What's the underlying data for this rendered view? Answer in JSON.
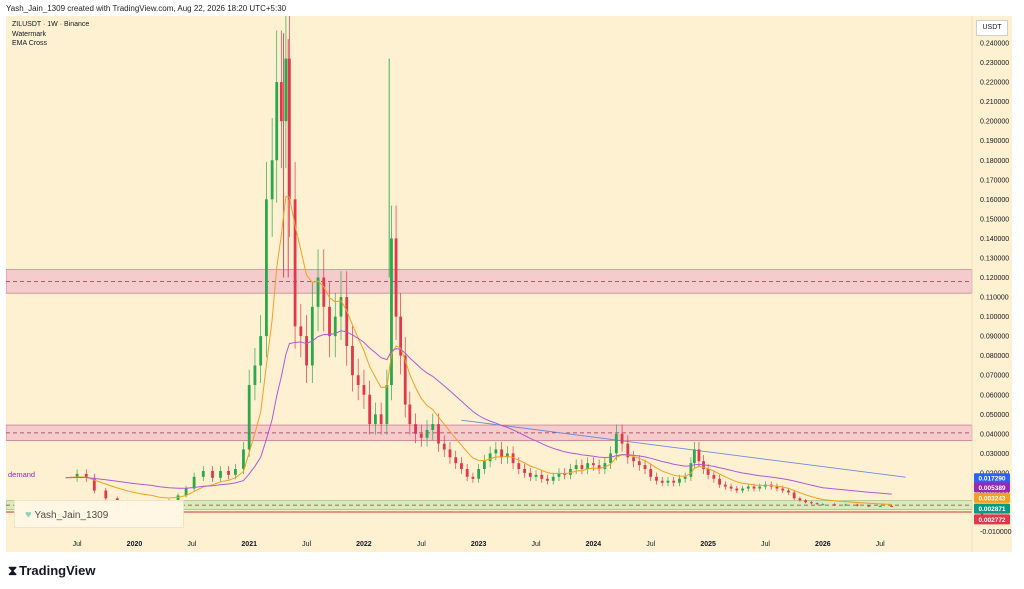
{
  "header": {
    "credit": "Yash_Jain_1309 created with TradingView.com, Aug 22, 2026 18:20 UTC+5:30",
    "legend": [
      "ZILUSDT · 1W · Binance",
      "Watermark",
      "EMA Cross"
    ],
    "currency": "USDT"
  },
  "footer": {
    "brand": "TradingView"
  },
  "annotations": {
    "demand_label": "demand",
    "watermark_text": "Yash_Jain_1309"
  },
  "colors": {
    "background": "#fdf1d2",
    "candle_up": "#2aa84a",
    "candle_down": "#e0384a",
    "ema_fast": "#f2a021",
    "ema_slow": "#b05ad6",
    "long_line": "#6c8ad8",
    "zone_fill": "#f0b8c8",
    "demand_fill": "#c8e8b0",
    "support_line": "#d32f2f"
  },
  "chart_data": {
    "type": "candlestick",
    "symbol": "ZILUSDT",
    "interval": "1W",
    "exchange": "Binance",
    "ylim": [
      -0.01,
      0.245
    ],
    "y_ticks": [
      "0.240000",
      "0.230000",
      "0.220000",
      "0.210000",
      "0.200000",
      "0.190000",
      "0.180000",
      "0.170000",
      "0.160000",
      "0.150000",
      "0.140000",
      "0.130000",
      "0.120000",
      "0.110000",
      "0.100000",
      "0.090000",
      "0.080000",
      "0.070000",
      "0.060000",
      "0.050000",
      "0.040000",
      "0.030000",
      "0.020000",
      "0.010000",
      "0",
      "-0.010000"
    ],
    "y_tick_values": [
      0.24,
      0.23,
      0.22,
      0.21,
      0.2,
      0.19,
      0.18,
      0.17,
      0.16,
      0.15,
      0.14,
      0.13,
      0.12,
      0.11,
      0.1,
      0.09,
      0.08,
      0.07,
      0.06,
      0.05,
      0.04,
      0.03,
      0.02,
      0.01,
      0,
      -0.01
    ],
    "x_ticks": [
      "Jul",
      "2020",
      "Jul",
      "2021",
      "Jul",
      "2022",
      "Jul",
      "2023",
      "Jul",
      "2024",
      "Jul",
      "2025",
      "Jul",
      "2026",
      "Jul"
    ],
    "x_tick_values": [
      2019.5,
      2020.0,
      2020.5,
      2021.0,
      2021.5,
      2022.0,
      2022.5,
      2023.0,
      2023.5,
      2024.0,
      2024.5,
      2025.0,
      2025.5,
      2026.0,
      2026.5
    ],
    "xlim": [
      2018.95,
      2027.3
    ],
    "price_zones": [
      {
        "name": "upper-zone",
        "from": 0.112,
        "to": 0.124,
        "dashed_level": 0.118
      },
      {
        "name": "lower-zone",
        "from": 0.0365,
        "to": 0.0445,
        "dashed_level": 0.0405
      },
      {
        "name": "demand-zone",
        "from": 0.0012,
        "to": 0.0058,
        "dashed_level": 0.0035
      }
    ],
    "support_level": 0.0,
    "price_labels": [
      {
        "value": "0.017290",
        "price": 0.0173,
        "color": "#2962ff"
      },
      {
        "value": "0.005389",
        "price": 0.0126,
        "color": "#9c27b0"
      },
      {
        "value": "0.003243",
        "price": 0.0072,
        "color": "#f2a021"
      },
      {
        "value": "0.002871",
        "price": 0.0017,
        "color": "#089981"
      },
      {
        "value": "0.002772",
        "price": -0.0038,
        "color": "#e0384a"
      }
    ],
    "close_series": [
      [
        2019.4,
        0.0175
      ],
      [
        2019.5,
        0.0195
      ],
      [
        2019.58,
        0.0175
      ],
      [
        2019.65,
        0.011
      ],
      [
        2019.75,
        0.007
      ],
      [
        2019.85,
        0.0055
      ],
      [
        2019.95,
        0.0045
      ],
      [
        2020.05,
        0.0048
      ],
      [
        2020.15,
        0.0055
      ],
      [
        2020.22,
        0.004
      ],
      [
        2020.3,
        0.006
      ],
      [
        2020.38,
        0.0085
      ],
      [
        2020.45,
        0.012
      ],
      [
        2020.52,
        0.018
      ],
      [
        2020.6,
        0.021
      ],
      [
        2020.68,
        0.0175
      ],
      [
        2020.75,
        0.021
      ],
      [
        2020.82,
        0.019
      ],
      [
        2020.88,
        0.022
      ],
      [
        2020.95,
        0.032
      ],
      [
        2021.0,
        0.065
      ],
      [
        2021.05,
        0.075
      ],
      [
        2021.1,
        0.09
      ],
      [
        2021.15,
        0.16
      ],
      [
        2021.2,
        0.18
      ],
      [
        2021.24,
        0.22
      ],
      [
        2021.28,
        0.2
      ],
      [
        2021.32,
        0.232
      ],
      [
        2021.35,
        0.16
      ],
      [
        2021.4,
        0.095
      ],
      [
        2021.45,
        0.09
      ],
      [
        2021.5,
        0.075
      ],
      [
        2021.55,
        0.105
      ],
      [
        2021.6,
        0.12
      ],
      [
        2021.65,
        0.105
      ],
      [
        2021.7,
        0.09
      ],
      [
        2021.75,
        0.1
      ],
      [
        2021.8,
        0.11
      ],
      [
        2021.85,
        0.085
      ],
      [
        2021.9,
        0.07
      ],
      [
        2021.95,
        0.065
      ],
      [
        2022.0,
        0.06
      ],
      [
        2022.05,
        0.045
      ],
      [
        2022.1,
        0.05
      ],
      [
        2022.15,
        0.045
      ],
      [
        2022.2,
        0.065
      ],
      [
        2022.24,
        0.14
      ],
      [
        2022.28,
        0.1
      ],
      [
        2022.32,
        0.08
      ],
      [
        2022.36,
        0.055
      ],
      [
        2022.4,
        0.045
      ],
      [
        2022.45,
        0.04
      ],
      [
        2022.5,
        0.038
      ],
      [
        2022.55,
        0.042
      ],
      [
        2022.6,
        0.045
      ],
      [
        2022.65,
        0.035
      ],
      [
        2022.7,
        0.032
      ],
      [
        2022.75,
        0.028
      ],
      [
        2022.8,
        0.025
      ],
      [
        2022.85,
        0.022
      ],
      [
        2022.9,
        0.018
      ],
      [
        2022.95,
        0.017
      ],
      [
        2023.0,
        0.022
      ],
      [
        2023.05,
        0.026
      ],
      [
        2023.1,
        0.03
      ],
      [
        2023.15,
        0.032
      ],
      [
        2023.2,
        0.028
      ],
      [
        2023.25,
        0.03
      ],
      [
        2023.3,
        0.025
      ],
      [
        2023.35,
        0.022
      ],
      [
        2023.4,
        0.02
      ],
      [
        2023.45,
        0.018
      ],
      [
        2023.5,
        0.019
      ],
      [
        2023.55,
        0.017
      ],
      [
        2023.6,
        0.016
      ],
      [
        2023.65,
        0.018
      ],
      [
        2023.7,
        0.02
      ],
      [
        2023.75,
        0.019
      ],
      [
        2023.8,
        0.022
      ],
      [
        2023.85,
        0.024
      ],
      [
        2023.9,
        0.022
      ],
      [
        2023.95,
        0.025
      ],
      [
        2024.0,
        0.024
      ],
      [
        2024.05,
        0.022
      ],
      [
        2024.1,
        0.025
      ],
      [
        2024.15,
        0.03
      ],
      [
        2024.2,
        0.04
      ],
      [
        2024.25,
        0.035
      ],
      [
        2024.3,
        0.028
      ],
      [
        2024.35,
        0.026
      ],
      [
        2024.4,
        0.024
      ],
      [
        2024.45,
        0.022
      ],
      [
        2024.5,
        0.018
      ],
      [
        2024.55,
        0.016
      ],
      [
        2024.6,
        0.015
      ],
      [
        2024.65,
        0.016
      ],
      [
        2024.7,
        0.015
      ],
      [
        2024.75,
        0.017
      ],
      [
        2024.8,
        0.018
      ],
      [
        2024.85,
        0.025
      ],
      [
        2024.88,
        0.032
      ],
      [
        2024.92,
        0.026
      ],
      [
        2024.96,
        0.022
      ],
      [
        2025.0,
        0.019
      ],
      [
        2025.05,
        0.017
      ],
      [
        2025.1,
        0.014
      ],
      [
        2025.15,
        0.013
      ],
      [
        2025.2,
        0.012
      ],
      [
        2025.25,
        0.011
      ],
      [
        2025.3,
        0.012
      ],
      [
        2025.35,
        0.013
      ],
      [
        2025.4,
        0.012
      ],
      [
        2025.45,
        0.013
      ],
      [
        2025.5,
        0.014
      ],
      [
        2025.55,
        0.013
      ],
      [
        2025.6,
        0.012
      ],
      [
        2025.65,
        0.011
      ],
      [
        2025.7,
        0.01
      ],
      [
        2025.75,
        0.007
      ],
      [
        2025.8,
        0.006
      ],
      [
        2025.85,
        0.005
      ],
      [
        2025.9,
        0.0045
      ],
      [
        2025.95,
        0.004
      ],
      [
        2026.0,
        0.004
      ],
      [
        2026.1,
        0.0035
      ],
      [
        2026.2,
        0.0038
      ],
      [
        2026.3,
        0.0032
      ],
      [
        2026.4,
        0.003
      ],
      [
        2026.5,
        0.0031
      ],
      [
        2026.6,
        0.0029
      ]
    ],
    "spikes": [
      {
        "x": 2021.3,
        "high": 0.245,
        "color": "#e0384a"
      },
      {
        "x": 2021.34,
        "high": 0.242,
        "color": "#e0384a"
      },
      {
        "x": 2022.22,
        "high": 0.232,
        "color": "#2aa84a"
      }
    ]
  }
}
